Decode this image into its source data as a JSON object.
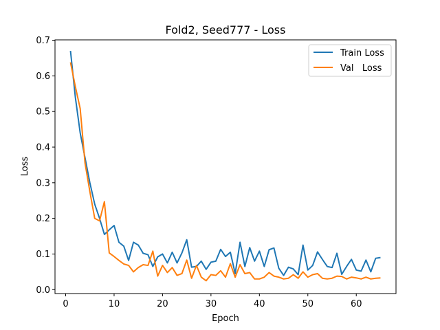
{
  "chart_data": {
    "type": "line",
    "title": "Fold2, Seed777 - Loss",
    "xlabel": "Epoch",
    "ylabel": "Loss",
    "xlim": [
      -2.2,
      68.2
    ],
    "ylim": [
      -0.011,
      0.701
    ],
    "xticks": [
      0,
      10,
      20,
      30,
      40,
      50,
      60
    ],
    "yticks": [
      0.0,
      0.1,
      0.2,
      0.3,
      0.4,
      0.5,
      0.6,
      0.7
    ],
    "ytick_labels": [
      "0.0",
      "0.1",
      "0.2",
      "0.3",
      "0.4",
      "0.5",
      "0.6",
      "0.7"
    ],
    "legend_position": "top-right",
    "grid": false,
    "x": [
      1,
      2,
      3,
      4,
      5,
      6,
      7,
      8,
      9,
      10,
      11,
      12,
      13,
      14,
      15,
      16,
      17,
      18,
      19,
      20,
      21,
      22,
      23,
      24,
      25,
      26,
      27,
      28,
      29,
      30,
      31,
      32,
      33,
      34,
      35,
      36,
      37,
      38,
      39,
      40,
      41,
      42,
      43,
      44,
      45,
      46,
      47,
      48,
      49,
      50,
      51,
      52,
      53,
      54,
      55,
      56,
      57,
      58,
      59,
      60,
      61,
      62,
      63,
      64,
      65
    ],
    "series": [
      {
        "name": "Train Loss",
        "color": "#1f77b4",
        "values": [
          0.67,
          0.54,
          0.44,
          0.37,
          0.3,
          0.24,
          0.2,
          0.155,
          0.168,
          0.18,
          0.133,
          0.122,
          0.082,
          0.133,
          0.125,
          0.102,
          0.098,
          0.065,
          0.092,
          0.1,
          0.075,
          0.105,
          0.075,
          0.103,
          0.14,
          0.063,
          0.065,
          0.08,
          0.057,
          0.077,
          0.08,
          0.113,
          0.093,
          0.105,
          0.045,
          0.133,
          0.065,
          0.118,
          0.08,
          0.108,
          0.065,
          0.112,
          0.117,
          0.06,
          0.04,
          0.063,
          0.058,
          0.042,
          0.125,
          0.055,
          0.068,
          0.106,
          0.085,
          0.065,
          0.062,
          0.102,
          0.043,
          0.065,
          0.085,
          0.055,
          0.052,
          0.083,
          0.05,
          0.088,
          0.09
        ]
      },
      {
        "name": "Val   Loss",
        "color": "#ff7f0e",
        "values": [
          0.638,
          0.57,
          0.508,
          0.355,
          0.275,
          0.2,
          0.193,
          0.247,
          0.103,
          0.093,
          0.082,
          0.072,
          0.068,
          0.05,
          0.062,
          0.07,
          0.068,
          0.108,
          0.038,
          0.068,
          0.048,
          0.062,
          0.04,
          0.045,
          0.083,
          0.032,
          0.068,
          0.035,
          0.025,
          0.042,
          0.04,
          0.053,
          0.035,
          0.073,
          0.035,
          0.07,
          0.045,
          0.048,
          0.03,
          0.03,
          0.035,
          0.048,
          0.038,
          0.035,
          0.03,
          0.032,
          0.042,
          0.032,
          0.05,
          0.035,
          0.042,
          0.045,
          0.032,
          0.03,
          0.032,
          0.038,
          0.037,
          0.03,
          0.035,
          0.033,
          0.03,
          0.035,
          0.03,
          0.032,
          0.033
        ]
      }
    ]
  }
}
